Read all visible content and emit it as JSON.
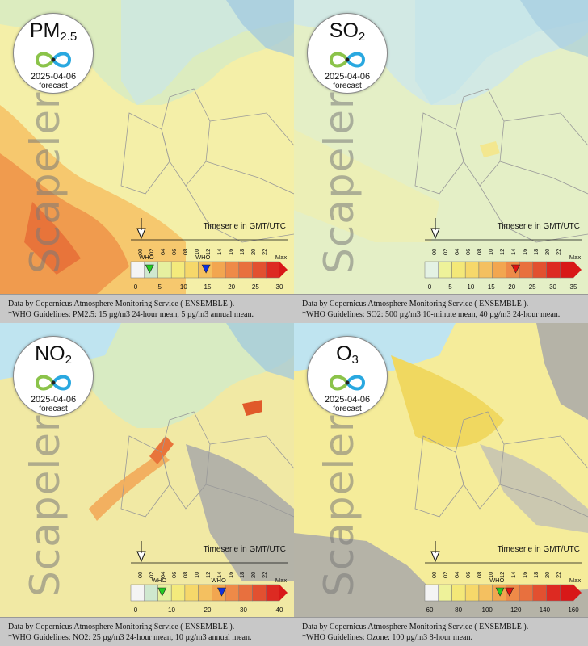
{
  "panels": [
    {
      "pollutant_main": "PM",
      "pollutant_sub": "2.5",
      "date": "2025-04-06",
      "kind": "forecast",
      "brand": "Scapeler",
      "timeserie_note": "Timeserie in GMT/UTC",
      "hours": [
        "00",
        "02",
        "04",
        "06",
        "08",
        "10",
        "12",
        "14",
        "16",
        "18",
        "20",
        "22"
      ],
      "ticks": [
        "0",
        "5",
        "10",
        "15",
        "20",
        "25",
        "30"
      ],
      "max_label": "Max",
      "who_labels": [
        "WHO",
        "WHO"
      ],
      "source": "Data by Copernicus Atmosphere Monitoring Service ( ENSEMBLE ).",
      "who_text": "*WHO Guidelines: PM2.5: 15 µg/m3 24-hour mean, 5 µg/m3 annual mean."
    },
    {
      "pollutant_main": "SO",
      "pollutant_sub": "2",
      "date": "2025-04-06",
      "kind": "forecast",
      "brand": "Scapeler",
      "timeserie_note": "Timeserie in GMT/UTC",
      "hours": [
        "00",
        "02",
        "04",
        "06",
        "08",
        "10",
        "12",
        "14",
        "16",
        "18",
        "20",
        "22"
      ],
      "ticks": [
        "0",
        "5",
        "10",
        "15",
        "20",
        "25",
        "30",
        "35"
      ],
      "max_label": "Max",
      "who_labels": [],
      "source": "Data by Copernicus Atmosphere Monitoring Service ( ENSEMBLE ).",
      "who_text": "*WHO Guidelines: SO2: 500 µg/m3 10-minute mean, 40 µg/m3 24-hour mean."
    },
    {
      "pollutant_main": "NO",
      "pollutant_sub": "2",
      "date": "2025-04-06",
      "kind": "forecast",
      "brand": "Scapeler",
      "timeserie_note": "Timeserie in GMT/UTC",
      "hours": [
        "00",
        "02",
        "04",
        "06",
        "08",
        "10",
        "12",
        "14",
        "16",
        "18",
        "20",
        "22"
      ],
      "ticks": [
        "0",
        "10",
        "20",
        "30",
        "40"
      ],
      "max_label": "Max",
      "who_labels": [
        "WHO",
        "WHO"
      ],
      "source": "Data by Copernicus Atmosphere Monitoring Service ( ENSEMBLE ).",
      "who_text": "*WHO Guidelines: NO2: 25 µg/m3 24-hour mean, 10 µg/m3 annual mean."
    },
    {
      "pollutant_main": "O",
      "pollutant_sub": "3",
      "date": "2025-04-06",
      "kind": "forecast",
      "brand": "Scapeler",
      "timeserie_note": "Timeserie in GMT/UTC",
      "hours": [
        "00",
        "02",
        "04",
        "06",
        "08",
        "10",
        "12",
        "14",
        "16",
        "18",
        "20",
        "22"
      ],
      "ticks": [
        "60",
        "80",
        "100",
        "120",
        "140",
        "160"
      ],
      "max_label": "Max",
      "who_labels": [
        "WHO"
      ],
      "source": "Data by Copernicus Atmosphere Monitoring Service ( ENSEMBLE ).",
      "who_text": "*WHO Guidelines: Ozone: 100 µg/m3 8-hour mean."
    }
  ],
  "colors": {
    "sea": "#bfe4f0",
    "land_low": "#e3efc5",
    "land_mid": "#f5e79a",
    "land_high": "#f2a65a",
    "cloud": "#a9a9a9",
    "who_green": "#22cc22",
    "who_blue": "#1030e0",
    "who_red": "#e01010"
  }
}
